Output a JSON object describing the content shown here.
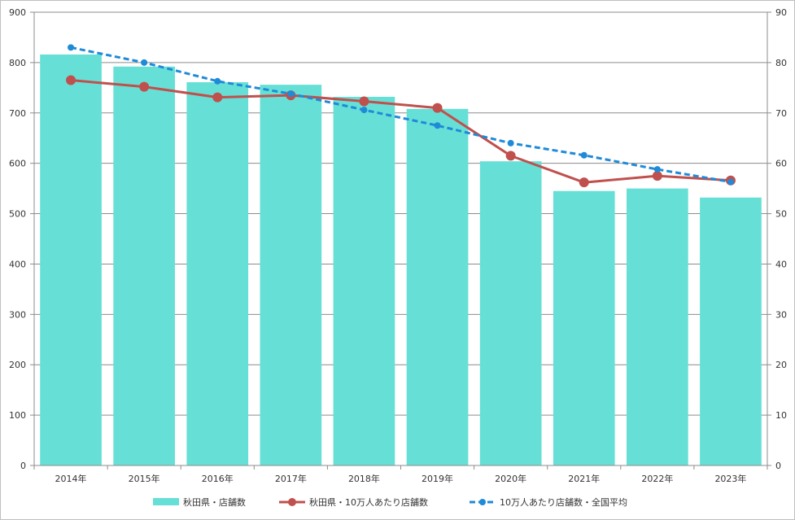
{
  "chart_data": {
    "type": "bar",
    "categories": [
      "2014年",
      "2015年",
      "2016年",
      "2017年",
      "2018年",
      "2019年",
      "2020年",
      "2021年",
      "2022年",
      "2023年"
    ],
    "series": [
      {
        "name": "秋田県・店舗数",
        "type": "bar",
        "axis": "left",
        "color": "#66e0d6",
        "values": [
          816,
          792,
          761,
          756,
          732,
          708,
          604,
          545,
          550,
          532
        ]
      },
      {
        "name": "秋田県・10万人あたり店舗数",
        "type": "line",
        "axis": "right",
        "color": "#c0504d",
        "line_style": "solid",
        "values": [
          76.5,
          75.2,
          73.1,
          73.5,
          72.3,
          71.0,
          61.5,
          56.2,
          57.5,
          56.6
        ]
      },
      {
        "name": "10万人あたり店舗数・全国平均",
        "type": "line",
        "axis": "right",
        "color": "#1f8ad8",
        "line_style": "dashed",
        "values": [
          83.0,
          80.0,
          76.3,
          73.8,
          70.6,
          67.5,
          64.0,
          61.6,
          58.8,
          56.3
        ]
      }
    ],
    "ylim_left": [
      0,
      900
    ],
    "ylim_right": [
      0,
      90
    ],
    "yticks_left": [
      "0",
      "100",
      "200",
      "300",
      "400",
      "500",
      "600",
      "700",
      "800",
      "900"
    ],
    "yticks_right": [
      "0",
      "10",
      "20",
      "30",
      "40",
      "50",
      "60",
      "70",
      "80",
      "90"
    ],
    "grid": true,
    "legend_position": "bottom"
  }
}
